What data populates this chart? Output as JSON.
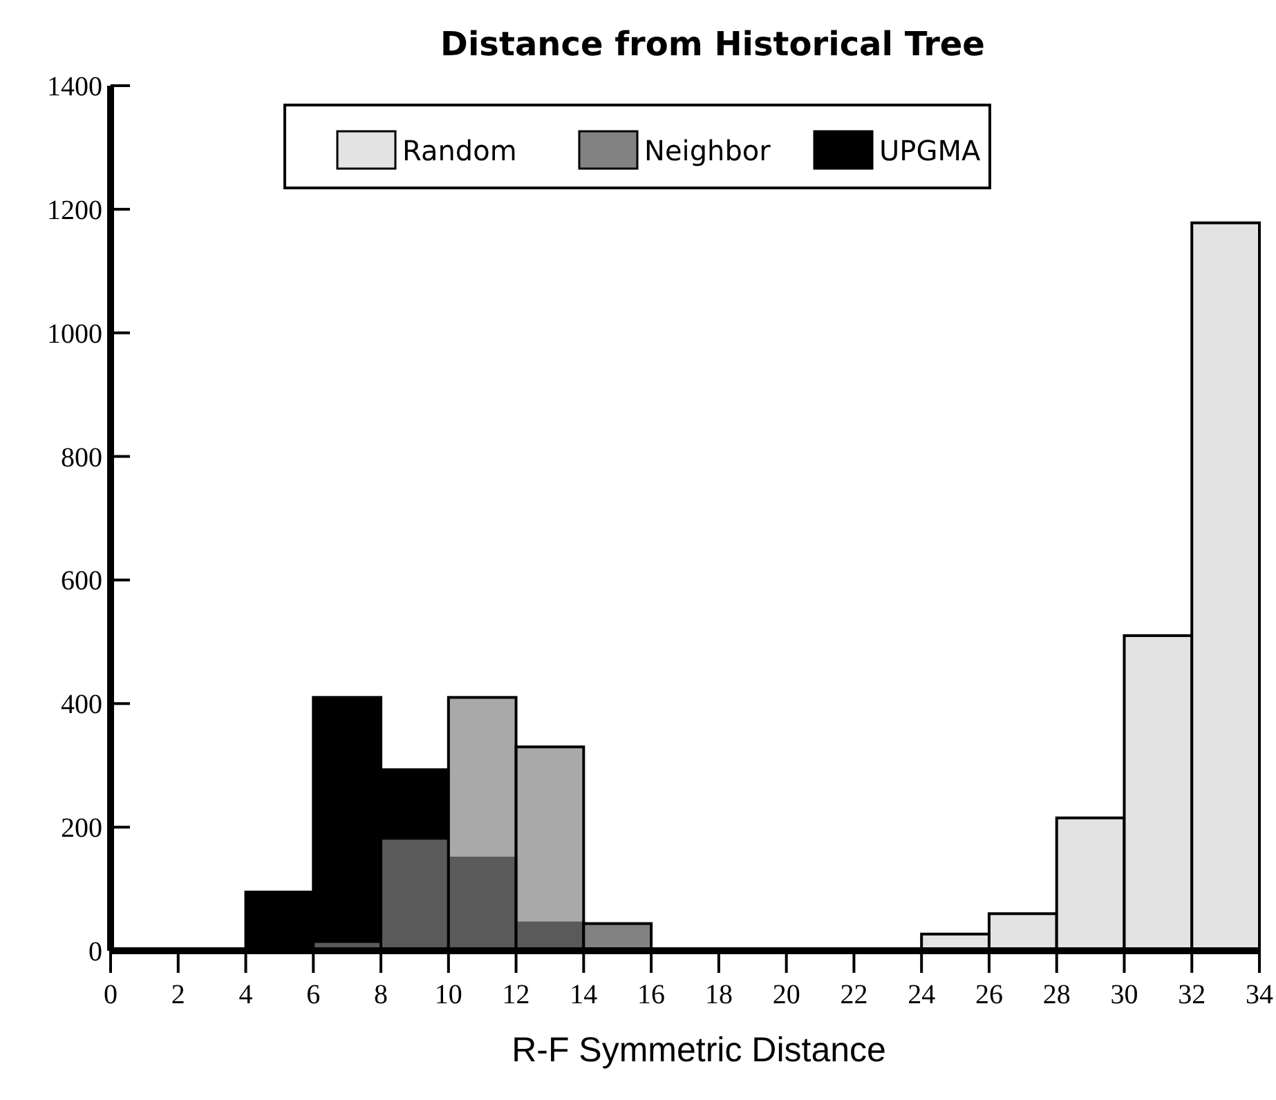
{
  "chart_data": {
    "type": "histogram",
    "title": "Distance from Historical Tree",
    "xlabel": "R-F Symmetric Distance",
    "bins": [
      0,
      2,
      4,
      6,
      8,
      10,
      12,
      14,
      16,
      18,
      20,
      22,
      24,
      26,
      28,
      30,
      32,
      34
    ],
    "series": [
      {
        "name": "Random",
        "color": "#e3e3e3",
        "values": [
          0,
          0,
          0,
          0,
          0,
          0,
          0,
          0,
          0,
          0,
          0,
          0,
          27,
          60,
          215,
          510,
          1178
        ]
      },
      {
        "name": "Neighbor",
        "color": "#828282",
        "values": [
          0,
          0,
          0,
          15,
          182,
          410,
          330,
          44,
          0,
          0,
          0,
          0,
          0,
          0,
          0,
          0,
          0
        ]
      },
      {
        "name": "UPGMA",
        "color": "#000000",
        "values": [
          0,
          0,
          95,
          410,
          293,
          150,
          45,
          0,
          0,
          0,
          0,
          0,
          0,
          0,
          0,
          0,
          0
        ]
      }
    ],
    "xlim": [
      0,
      34
    ],
    "xticks": [
      0,
      2,
      4,
      6,
      8,
      10,
      12,
      14,
      16,
      18,
      20,
      22,
      24,
      26,
      28,
      30,
      32,
      34
    ],
    "ylim": [
      0,
      1400
    ],
    "yticks": [
      0,
      200,
      400,
      600,
      800,
      1000,
      1200,
      1400
    ],
    "legend": "top",
    "grid": false
  }
}
